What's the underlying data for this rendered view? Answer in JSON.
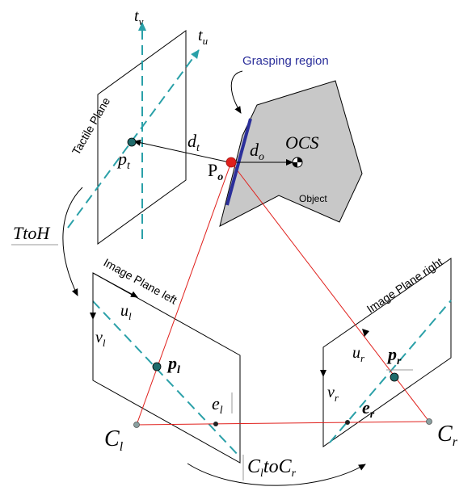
{
  "colors": {
    "region": "#2b2f9a",
    "dashed": "#2aa0a8",
    "ray": "#e0201c",
    "object_fill": "#c8c8c8",
    "point_fill": "#1f6b6b",
    "origin_fill": "#e0201c"
  },
  "labels": {
    "t_v": "t",
    "t_v_sub": "v",
    "t_u": "t",
    "t_u_sub": "u",
    "tactile_plane": "Tactile Plane",
    "grasping_region": "Grasping region",
    "d_t": "d",
    "d_t_sub": "t",
    "d_o": "d",
    "d_o_sub": "o",
    "ocs": "OCS",
    "p_t": "p",
    "p_t_sub": "t",
    "P_o": "P",
    "P_o_sub": "o",
    "object": "Object",
    "ttoh": "TtoH",
    "image_plane_left": "Image Plane left",
    "image_plane_right": "Image Plane right",
    "u_l": "u",
    "u_l_sub": "l",
    "v_l": "v",
    "v_l_sub": "l",
    "p_l": "p",
    "p_l_sub": "l",
    "e_l": "e",
    "e_l_sub": "l",
    "C_l": "C",
    "C_l_sub": "l",
    "u_r": "u",
    "u_r_sub": "r",
    "v_r": "v",
    "v_r_sub": "r",
    "p_r": "p",
    "p_r_sub": "r",
    "e_r": "e",
    "e_r_sub": "r",
    "C_r": "C",
    "C_r_sub": "r",
    "cltocr_a": "C",
    "cltocr_a_sub": "l",
    "cltocr_mid": "to",
    "cltocr_b": "C",
    "cltocr_b_sub": "r"
  }
}
